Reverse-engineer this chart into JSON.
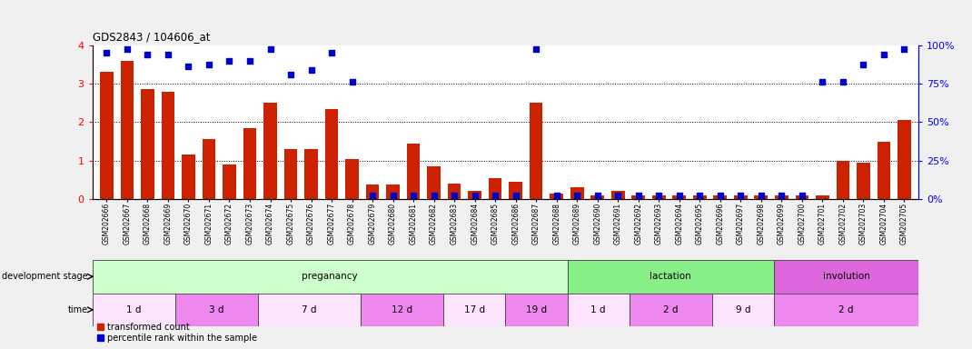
{
  "title": "GDS2843 / 104606_at",
  "samples": [
    "GSM202666",
    "GSM202667",
    "GSM202668",
    "GSM202669",
    "GSM202670",
    "GSM202671",
    "GSM202672",
    "GSM202673",
    "GSM202674",
    "GSM202675",
    "GSM202676",
    "GSM202677",
    "GSM202678",
    "GSM202679",
    "GSM202680",
    "GSM202681",
    "GSM202682",
    "GSM202683",
    "GSM202684",
    "GSM202685",
    "GSM202686",
    "GSM202687",
    "GSM202688",
    "GSM202689",
    "GSM202690",
    "GSM202691",
    "GSM202692",
    "GSM202693",
    "GSM202694",
    "GSM202695",
    "GSM202696",
    "GSM202697",
    "GSM202698",
    "GSM202699",
    "GSM202700",
    "GSM202701",
    "GSM202702",
    "GSM202703",
    "GSM202704",
    "GSM202705"
  ],
  "red_values": [
    3.3,
    3.6,
    2.85,
    2.8,
    1.15,
    1.55,
    0.9,
    1.85,
    2.5,
    1.3,
    1.3,
    2.35,
    1.05,
    0.37,
    0.37,
    1.45,
    0.85,
    0.4,
    0.2,
    0.55,
    0.45,
    2.5,
    0.15,
    0.3,
    0.1,
    0.2,
    0.1,
    0.1,
    0.1,
    0.1,
    0.1,
    0.1,
    0.1,
    0.1,
    0.1,
    0.1,
    1.0,
    0.95,
    1.5,
    2.05
  ],
  "blue_values": [
    95.0,
    97.5,
    93.75,
    93.75,
    86.25,
    87.5,
    90.0,
    90.0,
    97.5,
    81.25,
    83.75,
    95.0,
    76.25,
    2.5,
    2.5,
    2.5,
    2.5,
    2.5,
    2.5,
    2.5,
    2.5,
    97.5,
    2.5,
    2.5,
    2.5,
    2.5,
    2.5,
    2.5,
    2.5,
    2.5,
    2.5,
    2.5,
    2.5,
    2.5,
    2.5,
    76.25,
    76.25,
    87.5,
    93.75,
    97.5
  ],
  "dev_stages": [
    {
      "label": "preganancy",
      "start": 0,
      "end": 23,
      "color": "#ccffcc"
    },
    {
      "label": "lactation",
      "start": 23,
      "end": 33,
      "color": "#88ee88"
    },
    {
      "label": "involution",
      "start": 33,
      "end": 40,
      "color": "#dd66dd"
    }
  ],
  "time_groups": [
    {
      "label": "1 d",
      "start": 0,
      "end": 4,
      "color": "#fce4fc"
    },
    {
      "label": "3 d",
      "start": 4,
      "end": 8,
      "color": "#ee88ee"
    },
    {
      "label": "7 d",
      "start": 8,
      "end": 13,
      "color": "#fce4fc"
    },
    {
      "label": "12 d",
      "start": 13,
      "end": 17,
      "color": "#ee88ee"
    },
    {
      "label": "17 d",
      "start": 17,
      "end": 20,
      "color": "#fce4fc"
    },
    {
      "label": "19 d",
      "start": 20,
      "end": 23,
      "color": "#ee88ee"
    },
    {
      "label": "1 d",
      "start": 23,
      "end": 26,
      "color": "#fce4fc"
    },
    {
      "label": "2 d",
      "start": 26,
      "end": 30,
      "color": "#ee88ee"
    },
    {
      "label": "9 d",
      "start": 30,
      "end": 33,
      "color": "#fce4fc"
    },
    {
      "label": "2 d",
      "start": 33,
      "end": 40,
      "color": "#ee88ee"
    }
  ],
  "ylim": [
    0,
    4
  ],
  "y2lim": [
    0,
    100
  ],
  "yticks": [
    0,
    1,
    2,
    3,
    4
  ],
  "y2ticks": [
    0,
    25,
    50,
    75,
    100
  ],
  "bar_color": "#cc2200",
  "dot_color": "#0000cc",
  "background_color": "#f0f0f0",
  "plot_bg": "#ffffff",
  "dev_stage_label": "development stage",
  "time_label": "time",
  "legend_red": "transformed count",
  "legend_blue": "percentile rank within the sample"
}
